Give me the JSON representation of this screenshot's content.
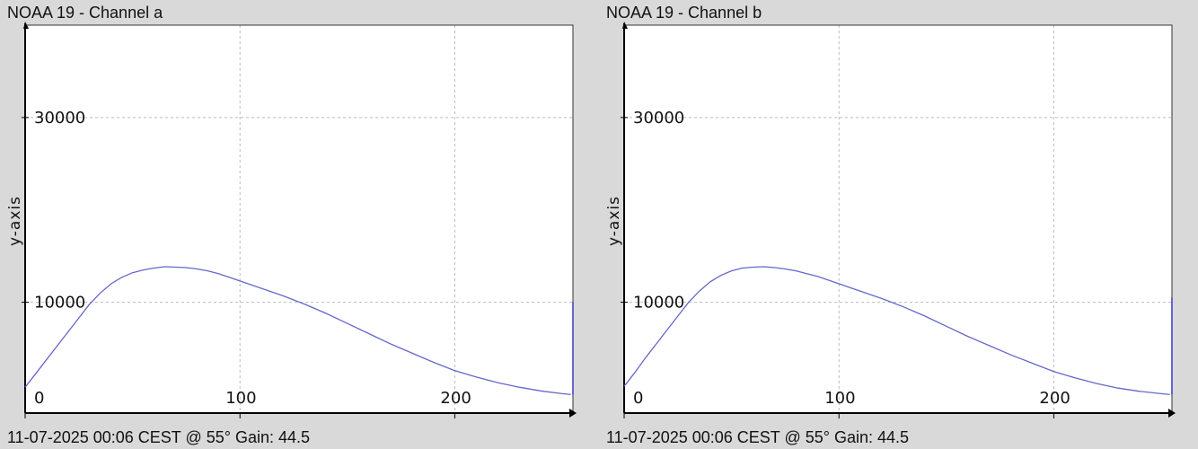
{
  "colors": {
    "background": "#d9d9d9",
    "plot_bg": "#ffffff",
    "line": "#6666cc",
    "grid": "#bbbbbb",
    "axis": "#000000"
  },
  "chart_data": [
    {
      "type": "line",
      "title": "NOAA 19 - Channel a",
      "footer": "11-07-2025 00:06 CEST @ 55° Gain: 44.5",
      "ylabel": "y-axis",
      "xlabel": "",
      "xlim": [
        0,
        255
      ],
      "ylim": [
        -2000,
        40000
      ],
      "xticks": [
        0,
        100,
        200
      ],
      "yticks": [
        10000,
        30000
      ],
      "grid": true,
      "series": [
        {
          "x": [
            0,
            5,
            10,
            15,
            20,
            25,
            30,
            35,
            40,
            45,
            50,
            55,
            60,
            65,
            70,
            75,
            80,
            85,
            90,
            95,
            100,
            110,
            120,
            130,
            140,
            150,
            160,
            170,
            180,
            190,
            200,
            210,
            220,
            230,
            240,
            250,
            254,
            255
          ],
          "y": [
            800,
            2300,
            3800,
            5300,
            6800,
            8300,
            9800,
            11000,
            12000,
            12700,
            13200,
            13500,
            13700,
            13850,
            13800,
            13750,
            13600,
            13400,
            13100,
            12700,
            12300,
            11500,
            10700,
            9800,
            8800,
            7700,
            6600,
            5500,
            4500,
            3500,
            2600,
            1900,
            1300,
            800,
            400,
            100,
            0,
            10000
          ]
        }
      ]
    },
    {
      "type": "line",
      "title": "NOAA 19 - Channel b",
      "footer": "11-07-2025 00:06 CEST @ 55° Gain: 44.5",
      "ylabel": "y-axis",
      "xlabel": "",
      "xlim": [
        0,
        255
      ],
      "ylim": [
        -2000,
        40000
      ],
      "xticks": [
        0,
        100,
        200
      ],
      "yticks": [
        10000,
        30000
      ],
      "grid": true,
      "series": [
        {
          "x": [
            0,
            5,
            10,
            15,
            20,
            25,
            30,
            35,
            40,
            45,
            50,
            55,
            60,
            65,
            70,
            75,
            80,
            85,
            90,
            95,
            100,
            110,
            120,
            130,
            140,
            150,
            160,
            170,
            180,
            190,
            200,
            210,
            220,
            230,
            240,
            250,
            254,
            255
          ],
          "y": [
            900,
            2400,
            4000,
            5500,
            7000,
            8500,
            10000,
            11200,
            12200,
            12900,
            13400,
            13700,
            13800,
            13850,
            13750,
            13600,
            13400,
            13100,
            12800,
            12400,
            12000,
            11200,
            10400,
            9500,
            8500,
            7400,
            6300,
            5300,
            4300,
            3400,
            2500,
            1800,
            1200,
            700,
            350,
            100,
            0,
            10500
          ]
        }
      ]
    }
  ]
}
